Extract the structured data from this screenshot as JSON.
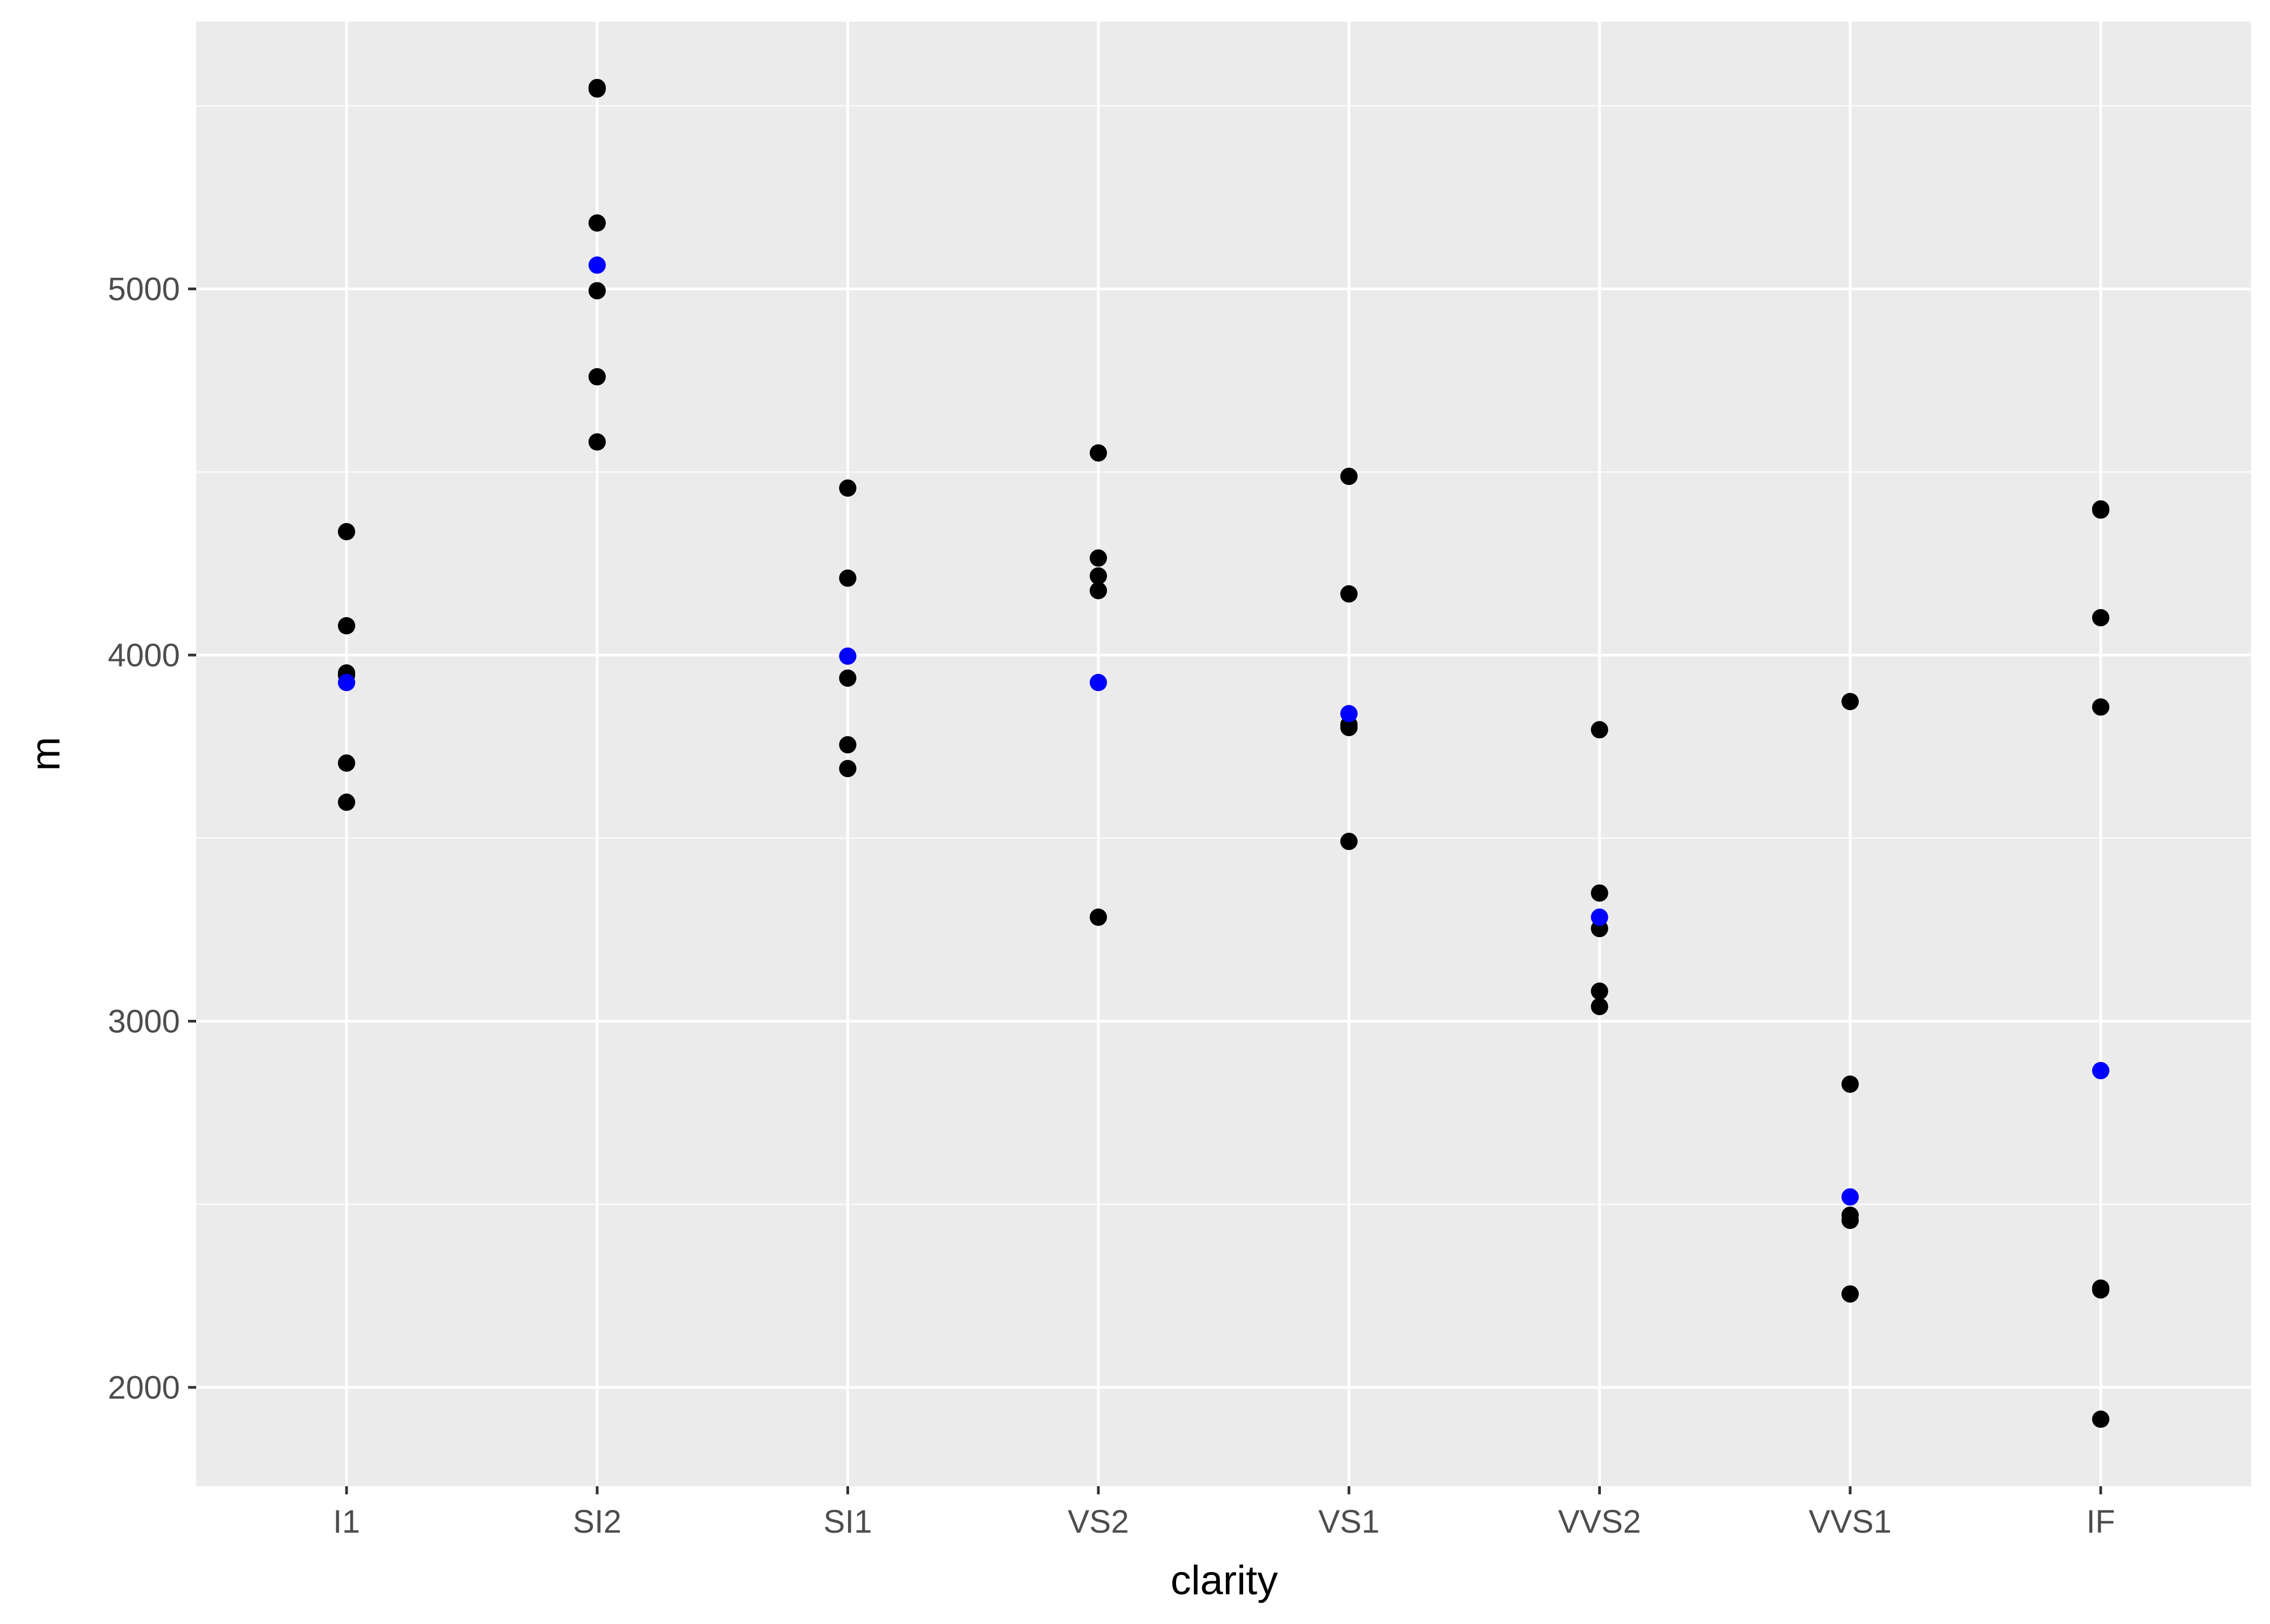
{
  "chart_data": {
    "type": "scatter",
    "title": "",
    "xlabel": "clarity",
    "ylabel": "m",
    "categories": [
      "I1",
      "SI2",
      "SI1",
      "VS2",
      "VS1",
      "VVS2",
      "VVS1",
      "IF"
    ],
    "ylim": [
      1730,
      5730
    ],
    "yticks": [
      2000,
      3000,
      4000,
      5000
    ],
    "grid": true,
    "legend": "none",
    "colors": {
      "panel_background": "#ebebeb",
      "grid": "#ffffff",
      "points": "#000000",
      "means": "#0000ff"
    },
    "series": [
      {
        "values": {
          "I1": [
            4337,
            4080,
            3951,
            3945,
            3705,
            3598
          ],
          "SI2": [
            5550,
            5546,
            5180,
            4995,
            4760,
            4582
          ],
          "SI1": [
            4456,
            4210,
            3937,
            3755,
            3690
          ],
          "VS2": [
            4552,
            4265,
            4216,
            4176,
            3284
          ],
          "VS1": [
            4488,
            4167,
            3810,
            3802,
            3491
          ],
          "VVS2": [
            3796,
            3350,
            3253,
            3082,
            3040
          ],
          "VVS1": [
            3873,
            2828,
            2470,
            2456,
            2255
          ],
          "IF": [
            4399,
            4396,
            4102,
            3858,
            2271,
            2266,
            1913
          ]
        }
      },
      {
        "values": {
          "I1": [
            3925
          ],
          "SI2": [
            5065
          ],
          "SI1": [
            3997
          ],
          "VS2": [
            3925
          ],
          "VS1": [
            3840
          ],
          "VVS2": [
            3284
          ],
          "VVS1": [
            2520
          ],
          "IF": [
            2865
          ]
        }
      }
    ]
  }
}
